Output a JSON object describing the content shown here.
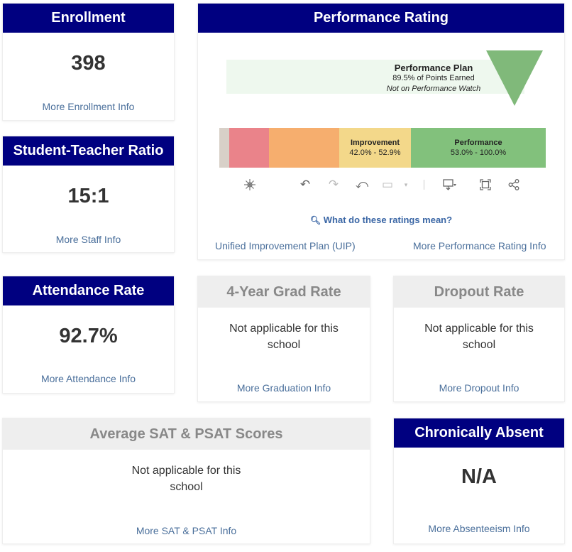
{
  "enrollment": {
    "title": "Enrollment",
    "value": "398",
    "link": "More Enrollment Info"
  },
  "ratio": {
    "title": "Student-Teacher Ratio",
    "value": "15:1",
    "link": "More Staff Info"
  },
  "attendance": {
    "title": "Attendance Rate",
    "value": "92.7%",
    "link": "More Attendance Info"
  },
  "performance": {
    "title": "Performance Rating",
    "plan_title": "Performance Plan",
    "plan_points": "89.5% of Points Earned",
    "plan_watch": "Not on Performance Watch",
    "segments": [
      {
        "name": "Improvement",
        "range": "42.0% - 52.9%"
      },
      {
        "name": "Performance",
        "range": "53.0% - 100.0%"
      }
    ],
    "help_link": "What do these ratings mean?",
    "uip_link": "Unified Improvement Plan (UIP)",
    "info_link": "More Performance Rating Info",
    "colors": {
      "accent_green": "#80b97a",
      "orange": "#f6ae6e",
      "pink": "#ea838a",
      "yellow": "#f3d88a",
      "green": "#82c17c"
    }
  },
  "grad": {
    "title": "4-Year Grad Rate",
    "text": "Not applicable for this school",
    "link": "More Graduation Info"
  },
  "dropout": {
    "title": "Dropout Rate",
    "text": "Not applicable for this school",
    "link": "More Dropout Info"
  },
  "sat": {
    "title": "Average SAT & PSAT Scores",
    "text": "Not applicable for this school",
    "link": "More SAT & PSAT Info"
  },
  "absent": {
    "title": "Chronically Absent",
    "value": "N/A",
    "link": "More Absenteeism Info"
  },
  "colors": {
    "header_blue": "#000080",
    "header_grey": "#eeeeee",
    "link": "#4a6f9b"
  }
}
